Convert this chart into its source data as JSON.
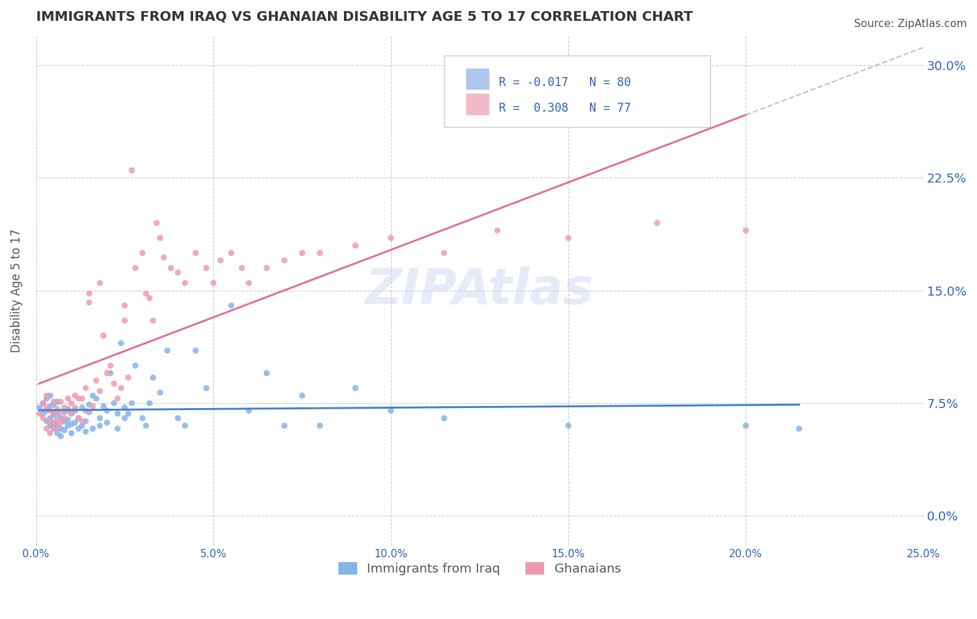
{
  "title": "IMMIGRANTS FROM IRAQ VS GHANAIAN DISABILITY AGE 5 TO 17 CORRELATION CHART",
  "source": "Source: ZipAtlas.com",
  "xlabel": "",
  "ylabel": "Disability Age 5 to 17",
  "xlim": [
    0.0,
    0.25
  ],
  "ylim": [
    -0.02,
    0.32
  ],
  "xticks": [
    0.0,
    0.05,
    0.1,
    0.15,
    0.2,
    0.25
  ],
  "xtick_labels": [
    "0.0%",
    "5.0%",
    "10.0%",
    "15.0%",
    "20.0%",
    "25.0%"
  ],
  "yticks": [
    0.0,
    0.075,
    0.15,
    0.225,
    0.3
  ],
  "ytick_labels": [
    "0.0%",
    "7.5%",
    "15.0%",
    "22.5%",
    "30.0%"
  ],
  "grid_color": "#cccccc",
  "background_color": "#ffffff",
  "watermark": "ZIPAtlas",
  "legend_entries": [
    {
      "label": "R = -0.017   N = 80",
      "color": "#aec6f0",
      "text_color": "#3060c0"
    },
    {
      "label": "R =  0.308   N = 77",
      "color": "#f5b8c8",
      "text_color": "#3060c0"
    }
  ],
  "series": [
    {
      "name": "Immigrants from Iraq",
      "color": "#85b4e8",
      "R": -0.017,
      "N": 80,
      "x": [
        0.001,
        0.002,
        0.002,
        0.003,
        0.003,
        0.003,
        0.004,
        0.004,
        0.004,
        0.004,
        0.005,
        0.005,
        0.005,
        0.005,
        0.006,
        0.006,
        0.006,
        0.006,
        0.007,
        0.007,
        0.007,
        0.008,
        0.008,
        0.008,
        0.009,
        0.009,
        0.009,
        0.01,
        0.01,
        0.01,
        0.011,
        0.011,
        0.012,
        0.012,
        0.013,
        0.013,
        0.014,
        0.014,
        0.015,
        0.015,
        0.016,
        0.016,
        0.017,
        0.018,
        0.018,
        0.019,
        0.02,
        0.02,
        0.021,
        0.022,
        0.023,
        0.023,
        0.024,
        0.025,
        0.025,
        0.026,
        0.027,
        0.028,
        0.03,
        0.031,
        0.032,
        0.033,
        0.035,
        0.037,
        0.04,
        0.042,
        0.045,
        0.048,
        0.055,
        0.06,
        0.065,
        0.07,
        0.075,
        0.08,
        0.09,
        0.1,
        0.115,
        0.15,
        0.2,
        0.215
      ],
      "y": [
        0.072,
        0.068,
        0.075,
        0.063,
        0.07,
        0.078,
        0.06,
        0.065,
        0.073,
        0.08,
        0.058,
        0.062,
        0.067,
        0.074,
        0.055,
        0.06,
        0.068,
        0.076,
        0.053,
        0.058,
        0.065,
        0.057,
        0.063,
        0.069,
        0.06,
        0.064,
        0.071,
        0.055,
        0.061,
        0.068,
        0.062,
        0.07,
        0.058,
        0.065,
        0.072,
        0.06,
        0.056,
        0.063,
        0.074,
        0.069,
        0.08,
        0.058,
        0.078,
        0.065,
        0.06,
        0.073,
        0.07,
        0.062,
        0.095,
        0.075,
        0.068,
        0.058,
        0.115,
        0.065,
        0.072,
        0.068,
        0.075,
        0.1,
        0.065,
        0.06,
        0.075,
        0.092,
        0.082,
        0.11,
        0.065,
        0.06,
        0.11,
        0.085,
        0.14,
        0.07,
        0.095,
        0.06,
        0.08,
        0.06,
        0.085,
        0.07,
        0.065,
        0.06,
        0.06,
        0.058
      ]
    },
    {
      "name": "Ghanaians",
      "color": "#f09ab0",
      "R": 0.308,
      "N": 77,
      "x": [
        0.001,
        0.002,
        0.002,
        0.003,
        0.003,
        0.003,
        0.004,
        0.004,
        0.004,
        0.005,
        0.005,
        0.005,
        0.006,
        0.006,
        0.006,
        0.007,
        0.007,
        0.007,
        0.008,
        0.008,
        0.009,
        0.009,
        0.01,
        0.01,
        0.011,
        0.011,
        0.012,
        0.012,
        0.013,
        0.013,
        0.014,
        0.014,
        0.015,
        0.015,
        0.016,
        0.017,
        0.018,
        0.018,
        0.019,
        0.02,
        0.021,
        0.022,
        0.023,
        0.024,
        0.025,
        0.025,
        0.026,
        0.027,
        0.028,
        0.03,
        0.031,
        0.032,
        0.033,
        0.034,
        0.035,
        0.036,
        0.038,
        0.04,
        0.042,
        0.045,
        0.048,
        0.05,
        0.052,
        0.055,
        0.058,
        0.06,
        0.065,
        0.07,
        0.075,
        0.08,
        0.09,
        0.1,
        0.115,
        0.13,
        0.15,
        0.175,
        0.2
      ],
      "y": [
        0.068,
        0.075,
        0.065,
        0.058,
        0.072,
        0.08,
        0.055,
        0.063,
        0.07,
        0.06,
        0.068,
        0.076,
        0.064,
        0.071,
        0.058,
        0.062,
        0.069,
        0.076,
        0.065,
        0.072,
        0.07,
        0.078,
        0.068,
        0.075,
        0.08,
        0.072,
        0.065,
        0.078,
        0.063,
        0.078,
        0.07,
        0.085,
        0.142,
        0.148,
        0.073,
        0.09,
        0.083,
        0.155,
        0.12,
        0.095,
        0.1,
        0.088,
        0.078,
        0.085,
        0.13,
        0.14,
        0.092,
        0.23,
        0.165,
        0.175,
        0.148,
        0.145,
        0.13,
        0.195,
        0.185,
        0.172,
        0.165,
        0.162,
        0.155,
        0.175,
        0.165,
        0.155,
        0.17,
        0.175,
        0.165,
        0.155,
        0.165,
        0.17,
        0.175,
        0.175,
        0.18,
        0.185,
        0.175,
        0.19,
        0.185,
        0.195,
        0.19
      ]
    }
  ]
}
